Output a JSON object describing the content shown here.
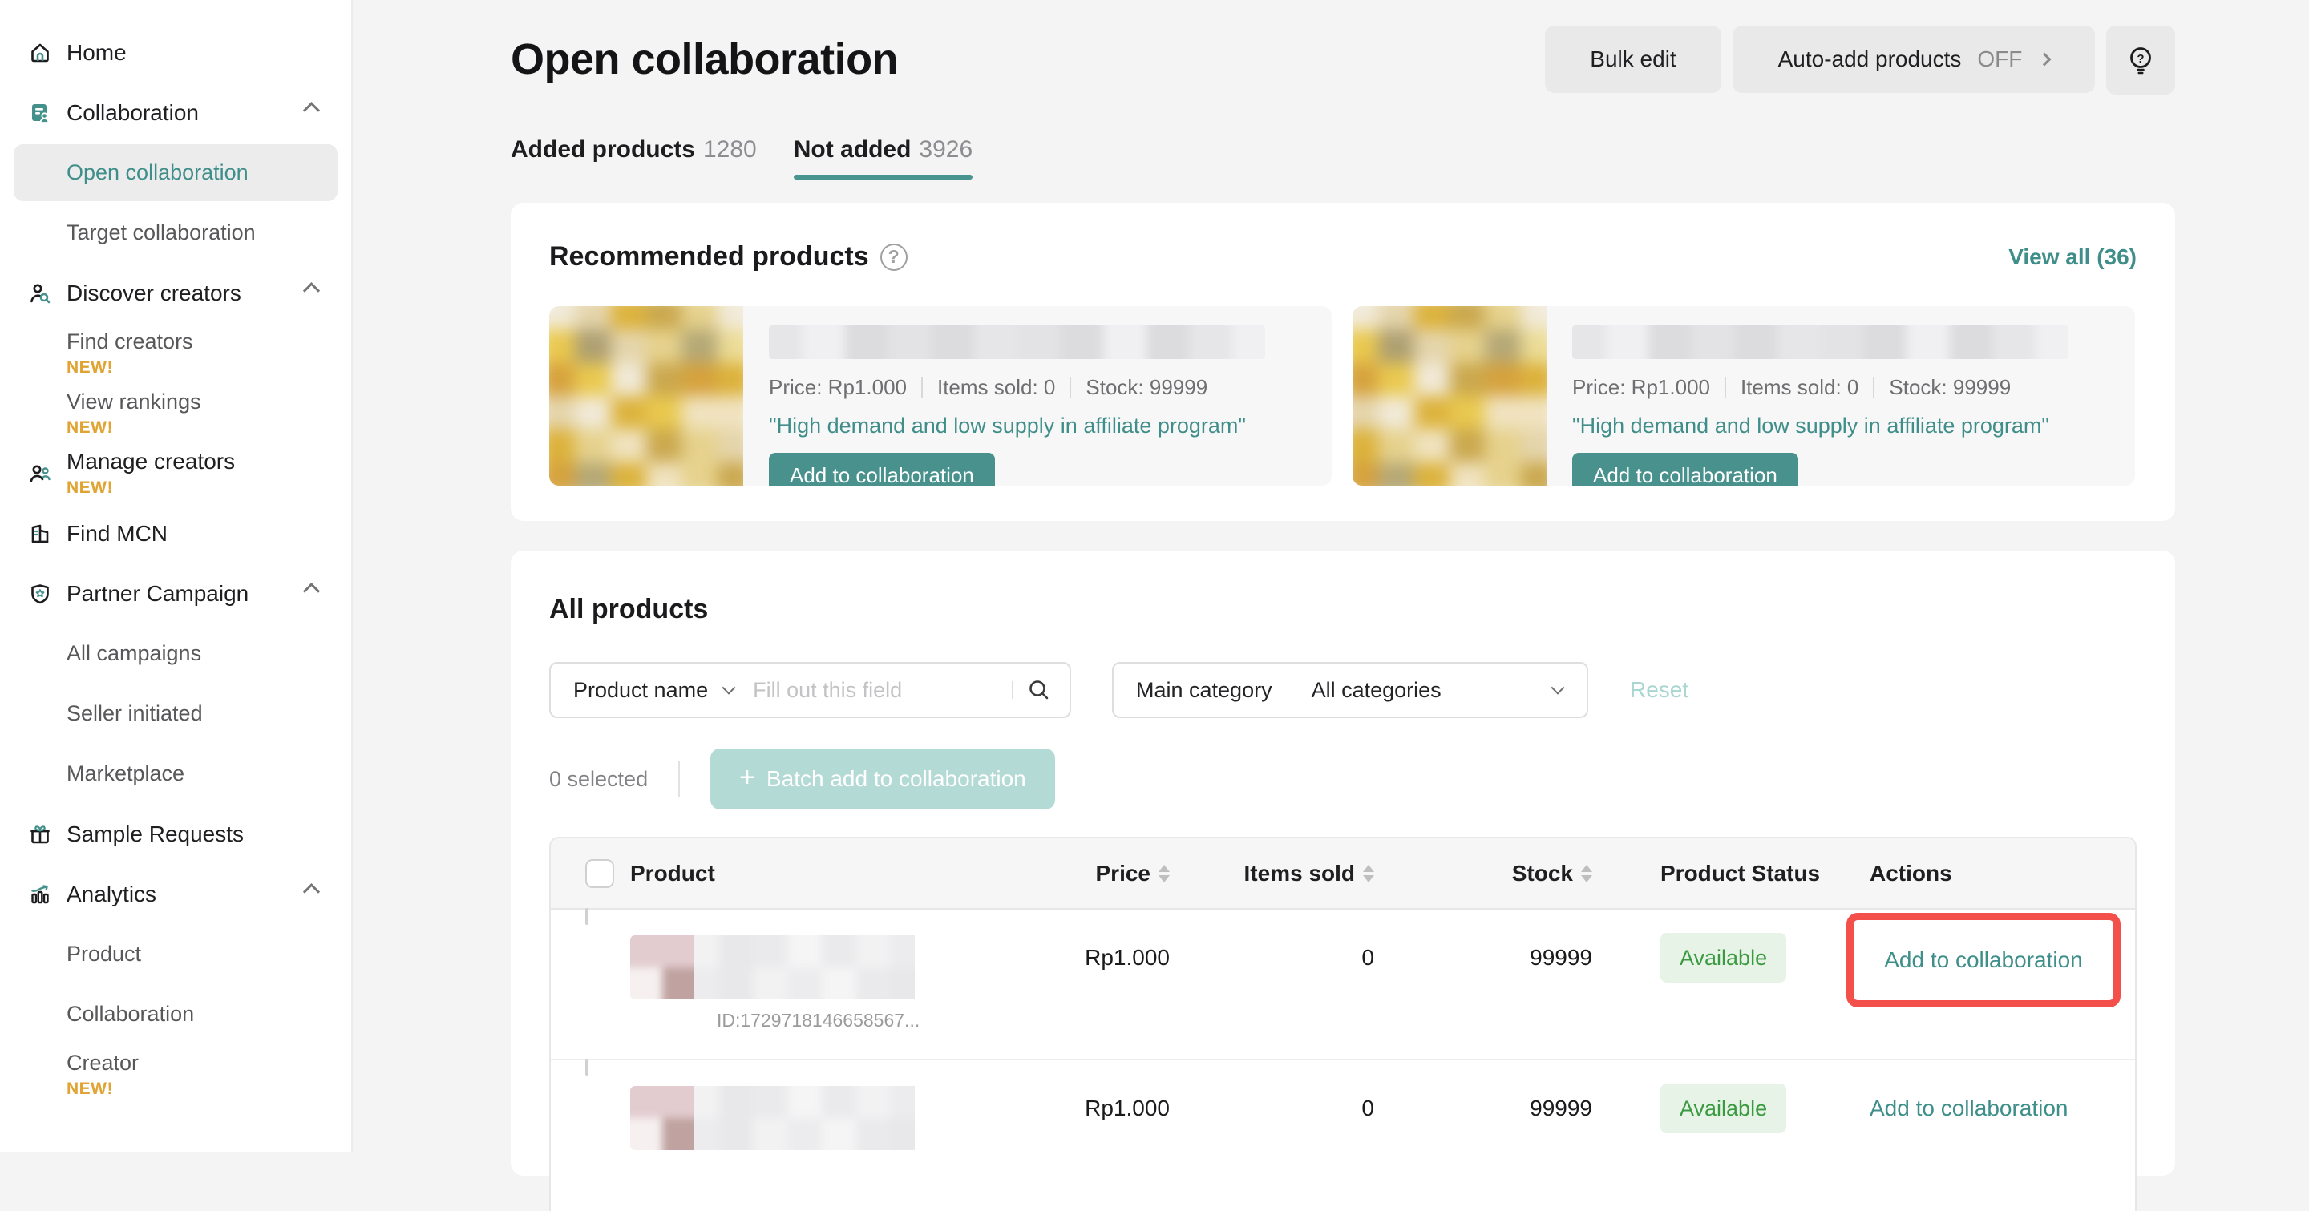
{
  "colors": {
    "accent_teal": "#48918c",
    "link_teal": "#3e8e89",
    "tab_underline": "#4a948f",
    "new_badge": "#dfa433",
    "highlight_red": "#f3504b",
    "status_green_text": "#3a9a40",
    "status_green_bg": "#e7f3e7",
    "page_bg": "#f4f4f5",
    "disabled_teal": "#b4dad6"
  },
  "badges": {
    "new": "NEW!"
  },
  "sidebar": {
    "items": [
      {
        "label": "Home"
      },
      {
        "label": "Collaboration"
      },
      {
        "label": "Open collaboration"
      },
      {
        "label": "Target collaboration"
      },
      {
        "label": "Discover creators"
      },
      {
        "label": "Find creators"
      },
      {
        "label": "View rankings"
      },
      {
        "label": "Manage creators"
      },
      {
        "label": "Find MCN"
      },
      {
        "label": "Partner Campaign"
      },
      {
        "label": "All campaigns"
      },
      {
        "label": "Seller initiated"
      },
      {
        "label": "Marketplace"
      },
      {
        "label": "Sample Requests"
      },
      {
        "label": "Analytics"
      },
      {
        "label": "Product"
      },
      {
        "label": "Collaboration"
      },
      {
        "label": "Creator"
      }
    ]
  },
  "header": {
    "title": "Open collaboration",
    "bulk_edit": "Bulk edit",
    "auto_add": "Auto-add products",
    "auto_add_state": "OFF"
  },
  "tabs": [
    {
      "label": "Added products",
      "count": "1280"
    },
    {
      "label": "Not added",
      "count": "3926"
    }
  ],
  "recommended": {
    "title": "Recommended products",
    "help": "?",
    "view_all": "View all (36)",
    "cards": [
      {
        "price": "Price: Rp1.000",
        "items_sold": "Items sold: 0",
        "stock": "Stock: 99999",
        "quote": "\"High demand and low supply in affiliate program\"",
        "button": "Add to collaboration"
      },
      {
        "price": "Price: Rp1.000",
        "items_sold": "Items sold: 0",
        "stock": "Stock: 99999",
        "quote": "\"High demand and low supply in affiliate program\"",
        "button": "Add to collaboration"
      }
    ]
  },
  "all_products": {
    "title": "All products",
    "filter": {
      "field_selector": "Product name",
      "placeholder": "Fill out this field",
      "category_label": "Main category",
      "category_value": "All categories",
      "reset": "Reset"
    },
    "selection": {
      "count_text": "0 selected",
      "batch_plus": "+",
      "batch_button": "Batch add to collaboration"
    },
    "table": {
      "columns": [
        "Product",
        "Price",
        "Items sold",
        "Stock",
        "Product Status",
        "Actions"
      ],
      "rows": [
        {
          "id": "ID:1729718146658567...",
          "price": "Rp1.000",
          "items_sold": "0",
          "stock": "99999",
          "status": "Available",
          "action": "Add to collaboration"
        },
        {
          "price": "Rp1.000",
          "items_sold": "0",
          "stock": "99999",
          "status": "Available",
          "action": "Add to collaboration"
        }
      ]
    }
  },
  "mosaics": {
    "product_yellow": {
      "cols": 6,
      "rows": 6,
      "seed": 7,
      "blur": 10,
      "palette": [
        "#eac94f",
        "#dcb23b",
        "#caa84e",
        "#b5a876",
        "#e6d28d",
        "#f1ead9",
        "#e5d5ac",
        "#d6a23d",
        "#ecdc96",
        "#ae9f71",
        "#f0e3c0"
      ]
    },
    "thumb_pink": {
      "cols": 2,
      "rows": 2,
      "seed": 3,
      "blur": 5,
      "palette": [
        "#f2e6e7",
        "#e2cccf",
        "#c0a3a1",
        "#dcc5c5",
        "#cbb0ae",
        "#f6f0f0"
      ]
    },
    "text_gray": {
      "cols": 7,
      "rows": 2,
      "seed": 5,
      "blur": 6,
      "palette": [
        "#ececee",
        "#e6e6e8",
        "#f2f2f3",
        "#eaeaec",
        "#f5f5f6",
        "#e8e8ea"
      ]
    },
    "title_gray": {
      "cols": 12,
      "rows": 1,
      "seed": 11,
      "blur": 6,
      "palette": [
        "#e3e3e5",
        "#dcdcde",
        "#ededef",
        "#e6e6e8",
        "#f0f0f2"
      ]
    }
  }
}
